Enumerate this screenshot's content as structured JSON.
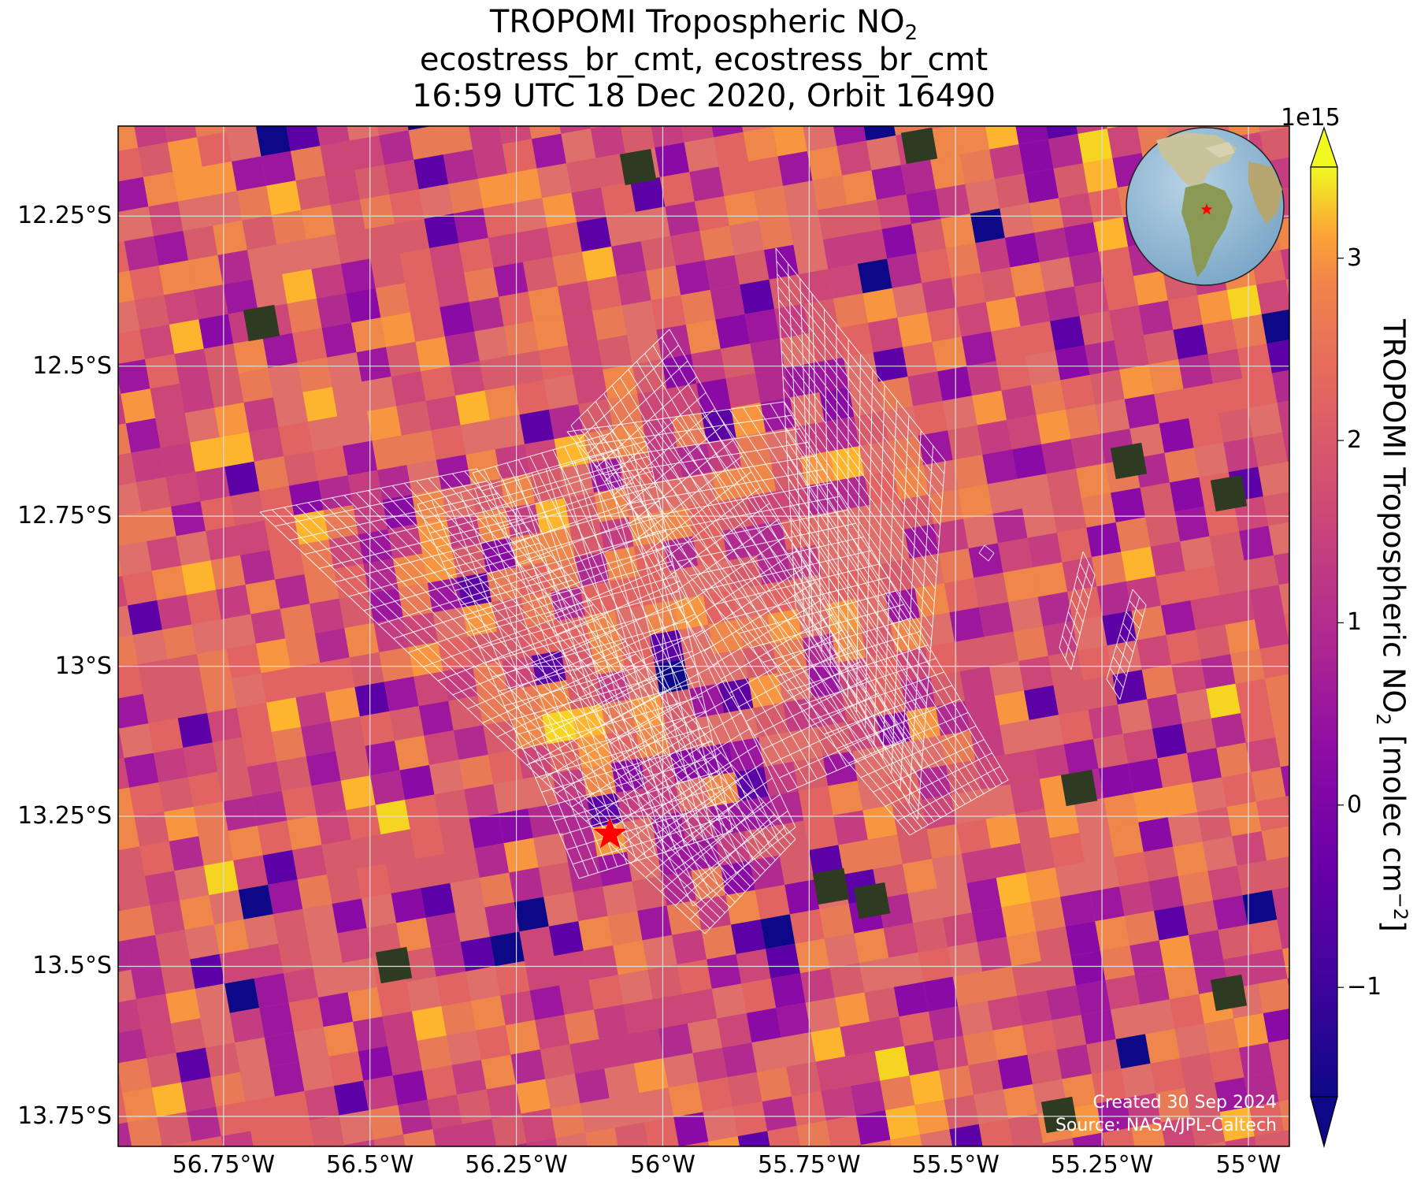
{
  "title": {
    "line1_prefix": "TROPOMI Tropospheric NO",
    "line1_sub": "2",
    "line2": "ecostress_br_cmt, ecostress_br_cmt",
    "line3": "16:59 UTC 18 Dec 2020, Orbit 16490"
  },
  "map": {
    "lon_range": [
      -56.93,
      -54.93
    ],
    "lat_range": [
      -13.8,
      -12.1
    ],
    "lat_ticks": [
      -12.25,
      -12.5,
      -12.75,
      -13,
      -13.25,
      -13.5,
      -13.75
    ],
    "lat_labels": [
      "12.25°S",
      "12.5°S",
      "12.75°S",
      "13°S",
      "13.25°S",
      "13.5°S",
      "13.75°S"
    ],
    "lon_ticks": [
      -56.75,
      -56.5,
      -56.25,
      -56,
      -55.75,
      -55.5,
      -55.25,
      -55
    ],
    "lon_labels": [
      "56.75°W",
      "56.5°W",
      "56.25°W",
      "56°W",
      "55.75°W",
      "55.5°W",
      "55.25°W",
      "55°W"
    ],
    "site_marker": {
      "lon": -56.09,
      "lat": -13.28,
      "color": "#ff0000"
    },
    "gridline_color": "#dddddd",
    "footprint_color": "#ffffff",
    "credit_line1": "Created 30 Sep 2024",
    "credit_line2": "Source: NASA/JPL-Caltech"
  },
  "colorbar": {
    "exponent_label": "1e15",
    "ticks": [
      3,
      2,
      1,
      0,
      -1
    ],
    "tick_labels": [
      "3",
      "2",
      "1",
      "0",
      "−1"
    ],
    "range": [
      -1.6,
      3.5
    ],
    "extend": "both",
    "colormap": "plasma",
    "label_prefix": "TROPOMI Tropospheric NO",
    "label_sub": "2",
    "label_mid": " [molec cm",
    "label_sup": "−2",
    "label_suffix": "]"
  },
  "inset_globe": {
    "icon": "globe-icon",
    "marker_color": "#ff0000"
  }
}
